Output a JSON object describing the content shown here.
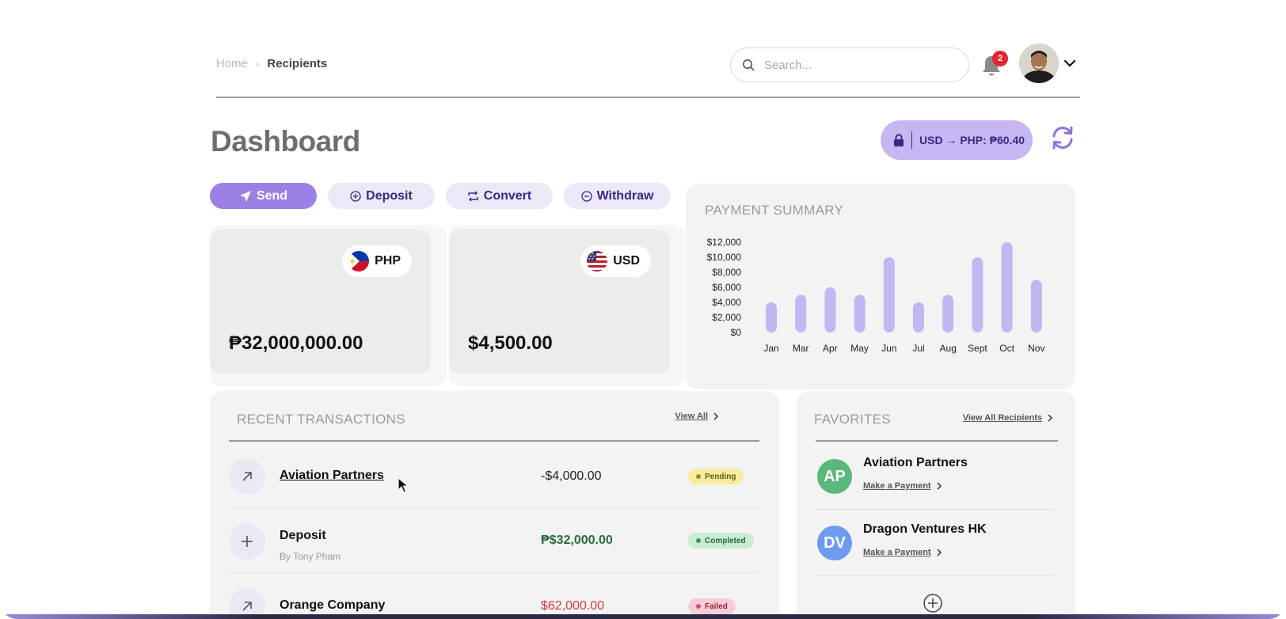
{
  "breadcrumb": {
    "home": "Home",
    "current": "Recipients"
  },
  "search": {
    "placeholder": "Search..."
  },
  "notifications": {
    "count": "2"
  },
  "page_title": "Dashboard",
  "exchange_rate": {
    "label": "USD → PHP: ₱60.40"
  },
  "actions": {
    "send": "Send",
    "deposit": "Deposit",
    "convert": "Convert",
    "withdraw": "Withdraw"
  },
  "balances": [
    {
      "currency": "PHP",
      "amount": "₱32,000,000.00"
    },
    {
      "currency": "USD",
      "amount": "$4,500.00"
    }
  ],
  "payment_summary": {
    "title": "PAYMENT SUMMARY"
  },
  "chart_data": {
    "type": "bar",
    "categories": [
      "Jan",
      "Mar",
      "Apr",
      "May",
      "Jun",
      "Jul",
      "Aug",
      "Sept",
      "Oct",
      "Nov"
    ],
    "values": [
      4000,
      5000,
      6000,
      5000,
      10000,
      4000,
      5000,
      10000,
      12000,
      7000
    ],
    "ylim": [
      0,
      12000
    ],
    "yticks": [
      "$0",
      "$2,000",
      "$4,000",
      "$6,000",
      "$8,000",
      "$10,000",
      "$12,000"
    ],
    "title": "",
    "xlabel": "",
    "ylabel": "",
    "bar_color": "#c4b6f2"
  },
  "recent": {
    "title": "RECENT TRANSACTIONS",
    "view_all": "View All",
    "rows": [
      {
        "name": "Aviation Partners",
        "sub": "",
        "amount": "-$4,000.00",
        "status": "Pending",
        "icon": "arrow-up-right-icon"
      },
      {
        "name": "Deposit",
        "sub": "By Tony Pham",
        "amount": "₱$32,000.00",
        "status": "Completed",
        "icon": "plus-icon"
      },
      {
        "name": "Orange Company",
        "sub": "",
        "amount": "$62,000.00",
        "status": "Failed",
        "icon": "arrow-up-right-icon"
      }
    ]
  },
  "favorites": {
    "title": "FAVORITES",
    "view_all": "View All Recipients",
    "items": [
      {
        "initials": "AP",
        "name": "Aviation Partners",
        "link": "Make a Payment",
        "color": "#5cb87a"
      },
      {
        "initials": "DV",
        "name": "Dragon Ventures HK",
        "link": "Make a Payment",
        "color": "#6e9bf0"
      }
    ]
  },
  "colors": {
    "accent": "#9b80e6",
    "pending_bg": "#f7ec9c",
    "pending_fg": "#6b5a10",
    "completed_bg": "#c9ecd2",
    "completed_fg": "#2a6a3c",
    "failed_bg": "#f7ccd6",
    "failed_fg": "#9a2438",
    "positive_amount": "#2a6a3c",
    "negative_amount": "#d23b3b"
  }
}
